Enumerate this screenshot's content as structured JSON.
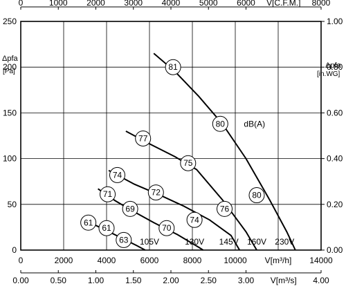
{
  "chart_data": {
    "type": "line",
    "title": "",
    "x_primary": {
      "label": "V[m³/h]",
      "range": [
        0,
        14000
      ],
      "ticks": [
        "0",
        "2000",
        "4000",
        "6000",
        "8000",
        "10000",
        "14000"
      ],
      "tick_values": [
        0,
        2000,
        4000,
        6000,
        8000,
        10000,
        14000
      ],
      "label_at": 12000
    },
    "x_top": {
      "label": "V[C.F.M.]",
      "range": [
        0,
        8000
      ],
      "ticks": [
        "0",
        "1000",
        "2000",
        "3000",
        "4000",
        "5000",
        "6000",
        "8000"
      ],
      "tick_values": [
        0,
        1000,
        2000,
        3000,
        4000,
        5000,
        6000,
        8000
      ],
      "label_at": 7000
    },
    "x_bottom": {
      "label": "V[m³/s]",
      "range": [
        0,
        4.0
      ],
      "ticks": [
        "0.00",
        "0.50",
        "1.00",
        "1.50",
        "2.00",
        "2.50",
        "3.00",
        "4.00"
      ],
      "tick_values": [
        0,
        0.5,
        1.0,
        1.5,
        2.0,
        2.5,
        3.0,
        4.0
      ],
      "label_at": 3.5
    },
    "y_left": {
      "label": [
        "Δpfa",
        "[Pa]"
      ],
      "range": [
        0,
        250
      ],
      "ticks": [
        "0",
        "50",
        "100",
        "150",
        "200",
        "250"
      ],
      "tick_values": [
        0,
        50,
        100,
        150,
        200,
        250
      ]
    },
    "y_right": {
      "label": [
        "Δpfa",
        "[in.WG]"
      ],
      "range": [
        0,
        1.0
      ],
      "ticks": [
        "0.00",
        "0.20",
        "0.40",
        "0.60",
        "0.80",
        "1.00"
      ],
      "tick_values": [
        0,
        0.2,
        0.4,
        0.6,
        0.8,
        1.0
      ]
    },
    "grid": true,
    "annotation": {
      "text": "dB(A)",
      "x": 10400,
      "y": 138
    },
    "series": [
      {
        "name": "105V",
        "points": [
          [
            2900,
            33
          ],
          [
            3500,
            27
          ],
          [
            4200,
            19
          ],
          [
            4800,
            12
          ],
          [
            5400,
            5
          ],
          [
            5800,
            0
          ]
        ],
        "label_at": [
          6000,
          9
        ],
        "markers": [
          {
            "text": "61",
            "x": 3150,
            "y": 30
          },
          {
            "text": "61",
            "x": 4000,
            "y": 24
          },
          {
            "text": "63",
            "x": 4800,
            "y": 11
          }
        ]
      },
      {
        "name": "130V",
        "points": [
          [
            3600,
            67
          ],
          [
            4400,
            54
          ],
          [
            5200,
            43
          ],
          [
            6200,
            30
          ],
          [
            7300,
            17
          ],
          [
            8300,
            3
          ],
          [
            8500,
            0
          ]
        ],
        "label_at": [
          8100,
          9
        ],
        "markers": [
          {
            "text": "71",
            "x": 4050,
            "y": 61
          },
          {
            "text": "69",
            "x": 5100,
            "y": 45
          },
          {
            "text": "70",
            "x": 6800,
            "y": 24
          }
        ]
      },
      {
        "name": "145V",
        "points": [
          [
            4100,
            87
          ],
          [
            5300,
            72
          ],
          [
            6500,
            60
          ],
          [
            7600,
            48
          ],
          [
            8800,
            33
          ],
          [
            9800,
            16
          ],
          [
            10200,
            0
          ]
        ],
        "label_at": [
          9700,
          9
        ],
        "markers": [
          {
            "text": "74",
            "x": 4500,
            "y": 82
          },
          {
            "text": "72",
            "x": 6300,
            "y": 63
          },
          {
            "text": "74",
            "x": 8100,
            "y": 33
          }
        ]
      },
      {
        "name": "160V",
        "points": [
          [
            4900,
            130
          ],
          [
            6100,
            115
          ],
          [
            7200,
            102
          ],
          [
            8200,
            88
          ],
          [
            9400,
            55
          ],
          [
            10500,
            20
          ],
          [
            11000,
            0
          ]
        ],
        "label_at": [
          11000,
          9
        ],
        "markers": [
          {
            "text": "77",
            "x": 5700,
            "y": 122
          },
          {
            "text": "75",
            "x": 7800,
            "y": 95
          },
          {
            "text": "76",
            "x": 9500,
            "y": 45
          }
        ]
      },
      {
        "name": "230V",
        "points": [
          [
            6200,
            215
          ],
          [
            7200,
            195
          ],
          [
            8300,
            168
          ],
          [
            9400,
            138
          ],
          [
            10500,
            100
          ],
          [
            11600,
            55
          ],
          [
            12400,
            20
          ],
          [
            12800,
            0
          ]
        ],
        "label_at": [
          12300,
          9
        ],
        "markers": [
          {
            "text": "81",
            "x": 7100,
            "y": 200
          },
          {
            "text": "80",
            "x": 9300,
            "y": 138
          },
          {
            "text": "80",
            "x": 11000,
            "y": 60
          }
        ]
      }
    ]
  }
}
